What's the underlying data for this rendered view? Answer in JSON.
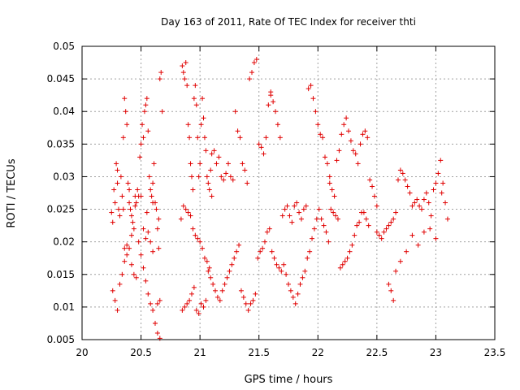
{
  "chart_data": {
    "type": "scatter",
    "title": "Day 163 of 2011, Rate Of TEC Index for receiver thti",
    "xlabel": "GPS time / hours",
    "ylabel": "ROTI / TECUs",
    "xlim": [
      20,
      23.5
    ],
    "ylim": [
      0.005,
      0.05
    ],
    "xticks": [
      "20",
      "20.5",
      "21",
      "21.5",
      "22",
      "22.5",
      "23",
      "23.5"
    ],
    "yticks": [
      "0.005",
      "0.01",
      "0.015",
      "0.02",
      "0.025",
      "0.03",
      "0.035",
      "0.04",
      "0.045",
      "0.05"
    ],
    "grid": true,
    "marker": "+",
    "color": "#e00000",
    "series": [
      {
        "x": [
          20.25,
          20.26,
          20.27,
          20.28,
          20.29,
          20.3,
          20.31,
          20.32,
          20.33,
          20.34,
          20.35,
          20.36,
          20.37,
          20.38,
          20.39,
          20.4,
          20.41,
          20.42,
          20.43,
          20.44,
          20.45,
          20.46,
          20.47,
          20.48,
          20.49,
          20.5,
          20.51,
          20.52,
          20.53,
          20.54,
          20.55,
          20.56,
          20.57,
          20.58,
          20.59,
          20.6,
          20.61,
          20.62,
          20.63,
          20.64,
          20.65,
          20.66,
          20.67,
          20.68,
          20.26,
          20.28,
          20.3,
          20.32,
          20.34,
          20.36,
          20.38,
          20.4,
          20.42,
          20.44,
          20.46,
          20.48,
          20.5,
          20.52,
          20.54,
          20.56,
          20.58,
          20.6,
          20.62,
          20.64,
          20.66,
          20.3,
          20.35,
          20.4,
          20.45,
          20.5,
          20.55,
          20.6,
          20.65,
          20.36,
          20.38,
          20.42,
          20.52,
          20.54,
          20.56,
          20.58,
          20.6,
          20.62,
          20.64,
          20.66,
          20.84,
          20.85,
          20.86,
          20.87,
          20.88,
          20.89,
          20.9,
          20.91,
          20.92,
          20.93,
          20.94,
          20.95,
          20.96,
          20.97,
          20.98,
          20.99,
          21.0,
          21.01,
          21.02,
          21.03,
          21.04,
          21.05,
          21.06,
          21.07,
          21.08,
          21.09,
          21.1,
          20.85,
          20.87,
          20.89,
          20.91,
          20.93,
          20.95,
          20.97,
          20.99,
          21.01,
          21.03,
          21.05,
          21.07,
          21.09,
          20.86,
          20.88,
          20.9,
          20.92,
          20.94,
          20.96,
          20.98,
          21.0,
          21.02,
          21.04,
          21.06,
          21.08,
          21.1,
          21.12,
          21.14,
          21.16,
          21.18,
          21.2,
          21.22,
          21.24,
          21.26,
          21.28,
          21.3,
          21.32,
          21.34,
          21.36,
          21.38,
          21.4,
          21.42,
          21.44,
          21.46,
          21.48,
          21.5,
          21.52,
          21.54,
          21.56,
          21.58,
          21.6,
          21.11,
          21.13,
          21.15,
          21.17,
          21.19,
          21.21,
          21.23,
          21.25,
          21.27,
          21.29,
          21.31,
          21.33,
          21.35,
          21.37,
          21.39,
          21.41,
          21.43,
          21.45,
          21.47,
          21.49,
          21.51,
          21.53,
          21.55,
          21.57,
          21.59,
          21.6,
          21.62,
          21.64,
          21.66,
          21.68,
          21.7,
          21.72,
          21.74,
          21.76,
          21.78,
          21.8,
          21.82,
          21.84,
          21.86,
          21.88,
          21.9,
          21.92,
          21.94,
          21.96,
          21.98,
          22.0,
          22.02,
          22.04,
          22.06,
          22.08,
          22.1,
          21.61,
          21.63,
          21.65,
          21.67,
          21.69,
          21.71,
          21.73,
          21.75,
          21.77,
          21.79,
          21.81,
          21.83,
          21.85,
          21.87,
          21.89,
          21.91,
          21.93,
          21.95,
          21.97,
          21.99,
          22.01,
          22.03,
          22.05,
          22.07,
          22.09,
          22.1,
          22.12,
          22.14,
          22.16,
          22.18,
          22.2,
          22.22,
          22.24,
          22.26,
          22.28,
          22.3,
          22.32,
          22.34,
          22.36,
          22.38,
          22.4,
          22.42,
          22.44,
          22.46,
          22.48,
          22.5,
          22.11,
          22.13,
          22.15,
          22.17,
          22.19,
          22.21,
          22.23,
          22.25,
          22.27,
          22.29,
          22.31,
          22.33,
          22.35,
          22.37,
          22.39,
          22.41,
          22.43,
          22.5,
          22.52,
          22.54,
          22.56,
          22.58,
          22.6,
          22.62,
          22.64,
          22.66,
          22.68,
          22.7,
          22.72,
          22.74,
          22.76,
          22.78,
          22.8,
          22.82,
          22.84,
          22.86,
          22.88,
          22.9,
          22.92,
          22.94,
          22.96,
          22.98,
          23.0,
          23.02,
          23.04,
          23.06,
          23.08,
          23.1,
          22.6,
          22.62,
          22.64,
          22.66,
          22.7,
          22.75,
          22.8,
          22.85,
          22.9,
          22.95,
          23.0,
          23.05
        ],
        "y": [
          0.0245,
          0.023,
          0.028,
          0.026,
          0.032,
          0.031,
          0.025,
          0.024,
          0.03,
          0.027,
          0.036,
          0.042,
          0.04,
          0.038,
          0.029,
          0.026,
          0.025,
          0.024,
          0.023,
          0.022,
          0.027,
          0.026,
          0.028,
          0.027,
          0.033,
          0.035,
          0.038,
          0.036,
          0.04,
          0.041,
          0.042,
          0.037,
          0.03,
          0.028,
          0.027,
          0.029,
          0.032,
          0.026,
          0.025,
          0.022,
          0.019,
          0.045,
          0.046,
          0.04,
          0.0125,
          0.011,
          0.0095,
          0.0135,
          0.015,
          0.017,
          0.018,
          0.019,
          0.0165,
          0.015,
          0.0145,
          0.02,
          0.018,
          0.016,
          0.014,
          0.012,
          0.0105,
          0.0095,
          0.0075,
          0.006,
          0.0052,
          0.029,
          0.025,
          0.028,
          0.0255,
          0.027,
          0.0245,
          0.026,
          0.0235,
          0.019,
          0.0195,
          0.021,
          0.022,
          0.0205,
          0.0215,
          0.02,
          0.0185,
          0.0075,
          0.0105,
          0.011,
          0.0235,
          0.047,
          0.046,
          0.045,
          0.0475,
          0.044,
          0.038,
          0.036,
          0.032,
          0.03,
          0.028,
          0.042,
          0.044,
          0.041,
          0.036,
          0.03,
          0.032,
          0.038,
          0.042,
          0.039,
          0.036,
          0.034,
          0.03,
          0.029,
          0.028,
          0.031,
          0.027,
          0.0095,
          0.01,
          0.0105,
          0.011,
          0.012,
          0.013,
          0.0095,
          0.009,
          0.0105,
          0.01,
          0.011,
          0.0155,
          0.0145,
          0.0255,
          0.025,
          0.0245,
          0.024,
          0.022,
          0.021,
          0.0205,
          0.02,
          0.019,
          0.0175,
          0.017,
          0.016,
          0.0335,
          0.034,
          0.032,
          0.033,
          0.03,
          0.0295,
          0.0305,
          0.032,
          0.03,
          0.0295,
          0.04,
          0.037,
          0.036,
          0.032,
          0.031,
          0.029,
          0.045,
          0.046,
          0.0475,
          0.048,
          0.035,
          0.0345,
          0.0335,
          0.036,
          0.041,
          0.043,
          0.0135,
          0.0125,
          0.0115,
          0.011,
          0.0125,
          0.0135,
          0.0145,
          0.0155,
          0.0165,
          0.0175,
          0.0185,
          0.0195,
          0.0125,
          0.0115,
          0.0105,
          0.0095,
          0.0105,
          0.011,
          0.012,
          0.0175,
          0.0185,
          0.019,
          0.02,
          0.0215,
          0.022,
          0.0425,
          0.0415,
          0.04,
          0.038,
          0.036,
          0.024,
          0.025,
          0.0255,
          0.024,
          0.023,
          0.0255,
          0.026,
          0.0245,
          0.0235,
          0.025,
          0.0255,
          0.0435,
          0.044,
          0.042,
          0.04,
          0.038,
          0.0365,
          0.036,
          0.033,
          0.032,
          0.03,
          0.0185,
          0.0175,
          0.0165,
          0.016,
          0.0155,
          0.0165,
          0.015,
          0.0135,
          0.0125,
          0.0115,
          0.0105,
          0.012,
          0.0135,
          0.0145,
          0.0155,
          0.0175,
          0.0185,
          0.0205,
          0.022,
          0.0235,
          0.025,
          0.0235,
          0.0225,
          0.0215,
          0.02,
          0.029,
          0.028,
          0.027,
          0.0325,
          0.034,
          0.0365,
          0.038,
          0.039,
          0.037,
          0.0355,
          0.034,
          0.0335,
          0.032,
          0.035,
          0.0365,
          0.037,
          0.036,
          0.0295,
          0.0285,
          0.027,
          0.0255,
          0.025,
          0.0245,
          0.024,
          0.0235,
          0.016,
          0.0165,
          0.017,
          0.0175,
          0.0185,
          0.0195,
          0.021,
          0.0225,
          0.023,
          0.0245,
          0.0245,
          0.0235,
          0.0225,
          0.0215,
          0.021,
          0.0205,
          0.0215,
          0.022,
          0.0225,
          0.023,
          0.0235,
          0.0245,
          0.0295,
          0.031,
          0.0305,
          0.0295,
          0.0285,
          0.0275,
          0.0255,
          0.026,
          0.0265,
          0.0255,
          0.025,
          0.0265,
          0.0275,
          0.026,
          0.024,
          0.028,
          0.029,
          0.0305,
          0.0325,
          0.029,
          0.026,
          0.0235,
          0.0135,
          0.0125,
          0.011,
          0.0155,
          0.017,
          0.0185,
          0.021,
          0.0195,
          0.0215,
          0.022,
          0.0205,
          0.0275
        ]
      }
    ]
  }
}
